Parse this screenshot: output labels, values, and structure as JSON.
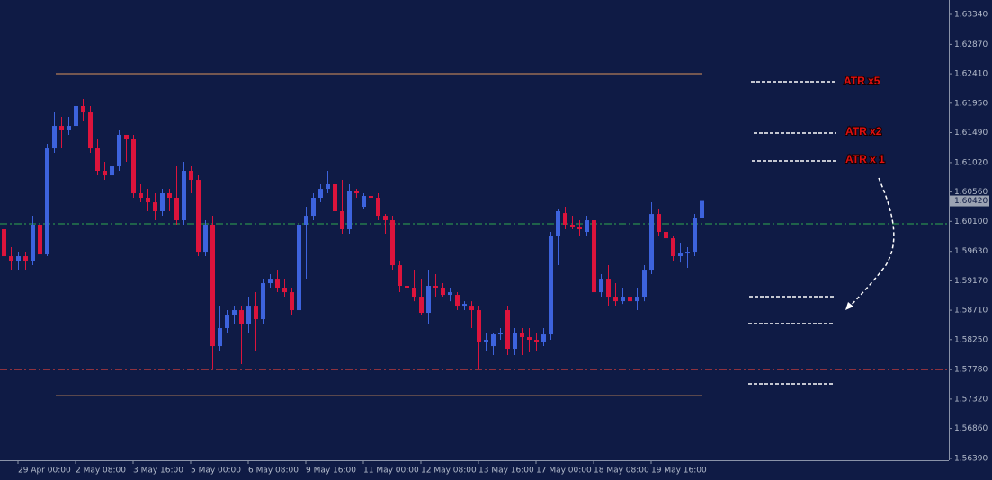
{
  "chart_data": {
    "type": "candlestick",
    "categories": [
      null,
      null,
      "29 Apr 00:00",
      null,
      null,
      null,
      null,
      null,
      null,
      null,
      "2 May 08:00",
      null,
      null,
      null,
      null,
      null,
      null,
      null,
      "3 May 16:00",
      null,
      null,
      null,
      null,
      null,
      null,
      null,
      "5 May 00:00",
      null,
      null,
      null,
      null,
      null,
      null,
      null,
      "6 May 08:00",
      null,
      null,
      null,
      null,
      null,
      null,
      null,
      "9 May 16:00",
      null,
      null,
      null,
      null,
      null,
      null,
      null,
      "11 May 00:00",
      null,
      null,
      null,
      null,
      null,
      null,
      null,
      "12 May 08:00",
      null,
      null,
      null,
      null,
      null,
      null,
      null,
      "13 May 16:00",
      null,
      null,
      null,
      null,
      null,
      null,
      null,
      "17 May 00:00",
      null,
      null,
      null,
      null,
      null,
      null,
      null,
      "18 May 08:00",
      null,
      null,
      null,
      null,
      null,
      null,
      null,
      "19 May 16:00",
      null,
      null,
      null,
      null,
      null,
      null,
      null
    ],
    "open": [
      1.59977,
      1.59555,
      1.59485,
      1.59555,
      1.59485,
      1.60048,
      1.59583,
      1.61243,
      1.61595,
      1.61525,
      1.61595,
      1.61905,
      1.61806,
      1.61243,
      1.60892,
      1.60821,
      1.60962,
      1.61455,
      1.61384,
      1.6054,
      1.6047,
      1.60399,
      1.60259,
      1.6054,
      1.6047,
      1.60118,
      1.60892,
      1.60751,
      1.59625,
      1.60048,
      1.58148,
      1.5843,
      1.58641,
      1.58711,
      1.585,
      1.58781,
      1.5857,
      1.59133,
      1.59203,
      1.59063,
      1.58992,
      1.58711,
      1.60048,
      1.60188,
      1.6047,
      1.6061,
      1.60681,
      1.60259,
      1.59977,
      1.60582,
      1.60329,
      1.60498,
      1.6047,
      1.60188,
      1.60118,
      1.59414,
      1.59091,
      1.59063,
      1.58922,
      1.58669,
      1.59091,
      1.59063,
      1.5895,
      1.5895,
      1.58781,
      1.58781,
      1.58711,
      1.58219,
      1.58148,
      1.58331,
      1.58711,
      1.58106,
      1.58359,
      1.58289,
      1.58247,
      1.58219,
      1.58331,
      1.59879,
      1.6023,
      1.60048,
      1.60019,
      1.59935,
      1.60118,
      1.58992,
      1.59203,
      1.58922,
      1.58851,
      1.58922,
      1.58851,
      1.58922,
      1.59344,
      1.60216,
      1.59935,
      1.59836,
      1.59555,
      1.59597,
      1.59625,
      1.6016
    ],
    "high": [
      1.60188,
      1.59696,
      1.59625,
      1.59625,
      1.60188,
      1.60329,
      1.61314,
      1.61806,
      1.61736,
      1.61736,
      1.62017,
      1.62017,
      1.61905,
      1.61384,
      1.61032,
      1.61103,
      1.61525,
      1.61455,
      1.61455,
      1.60681,
      1.6061,
      1.6054,
      1.6061,
      1.6061,
      1.60962,
      1.61032,
      1.60962,
      1.60821,
      1.60118,
      1.60188,
      1.58781,
      1.58711,
      1.58781,
      1.58781,
      1.58922,
      1.58992,
      1.59203,
      1.59274,
      1.59344,
      1.59203,
      1.59063,
      1.60118,
      1.60329,
      1.6054,
      1.60681,
      1.60892,
      1.60821,
      1.60751,
      1.60681,
      1.6061,
      1.6054,
      1.6054,
      1.6054,
      1.60216,
      1.60188,
      1.59485,
      1.59203,
      1.59344,
      1.59203,
      1.59344,
      1.59274,
      1.59133,
      1.59063,
      1.58992,
      1.58851,
      1.58851,
      1.58781,
      1.58359,
      1.58359,
      1.5843,
      1.58781,
      1.5843,
      1.5843,
      1.5843,
      1.58359,
      1.5843,
      1.59935,
      1.60301,
      1.60329,
      1.60188,
      1.60118,
      1.60188,
      1.60188,
      1.59274,
      1.59414,
      1.59133,
      1.59063,
      1.58992,
      1.59063,
      1.59414,
      1.60399,
      1.60301,
      1.60048,
      1.59879,
      1.59766,
      1.59696,
      1.60216,
      1.60498
    ],
    "low": [
      1.59485,
      1.59344,
      1.59344,
      1.59344,
      1.59414,
      1.59555,
      1.59555,
      1.61173,
      1.61243,
      1.61455,
      1.61243,
      1.61666,
      1.61173,
      1.60821,
      1.60751,
      1.60751,
      1.60892,
      1.61032,
      1.6047,
      1.60399,
      1.60259,
      1.60118,
      1.60188,
      1.60259,
      1.60048,
      1.60048,
      1.6054,
      1.59555,
      1.59555,
      1.57796,
      1.58078,
      1.58359,
      1.585,
      1.57867,
      1.58359,
      1.58078,
      1.585,
      1.59063,
      1.58992,
      1.58922,
      1.58641,
      1.58641,
      1.59203,
      1.60118,
      1.60399,
      1.6054,
      1.60188,
      1.59907,
      1.59907,
      1.6047,
      1.60301,
      1.60399,
      1.60118,
      1.59907,
      1.59344,
      1.58992,
      1.58992,
      1.58851,
      1.58641,
      1.585,
      1.58922,
      1.58922,
      1.58851,
      1.58711,
      1.58711,
      1.5843,
      1.57796,
      1.58078,
      1.58008,
      1.58247,
      1.58008,
      1.58008,
      1.58008,
      1.5805,
      1.58078,
      1.58148,
      1.58247,
      1.59414,
      1.59977,
      1.59977,
      1.59879,
      1.59879,
      1.58922,
      1.58922,
      1.58781,
      1.58781,
      1.58809,
      1.58641,
      1.58711,
      1.58851,
      1.59274,
      1.59879,
      1.59766,
      1.59485,
      1.59456,
      1.59372,
      1.59555,
      1.60118
    ],
    "close": [
      1.59555,
      1.59485,
      1.59555,
      1.59485,
      1.60048,
      1.59583,
      1.61243,
      1.61595,
      1.61525,
      1.61595,
      1.61905,
      1.61806,
      1.61243,
      1.60892,
      1.60821,
      1.60962,
      1.61455,
      1.61384,
      1.6054,
      1.6047,
      1.60399,
      1.60259,
      1.6054,
      1.6047,
      1.60118,
      1.60892,
      1.60751,
      1.59625,
      1.60048,
      1.58148,
      1.5843,
      1.58641,
      1.58711,
      1.585,
      1.58781,
      1.5857,
      1.59133,
      1.59203,
      1.59063,
      1.58992,
      1.58711,
      1.60048,
      1.60188,
      1.6047,
      1.6061,
      1.60681,
      1.60259,
      1.59977,
      1.60582,
      1.6054,
      1.60498,
      1.6047,
      1.60188,
      1.60118,
      1.59414,
      1.59091,
      1.59063,
      1.58922,
      1.58669,
      1.59091,
      1.59063,
      1.5895,
      1.58992,
      1.58781,
      1.58809,
      1.58711,
      1.58219,
      1.58247,
      1.58331,
      1.58359,
      1.58106,
      1.58359,
      1.58289,
      1.58247,
      1.58219,
      1.58331,
      1.59879,
      1.60259,
      1.60048,
      1.6002,
      1.59977,
      1.60118,
      1.58992,
      1.59203,
      1.58922,
      1.58851,
      1.58922,
      1.58851,
      1.58922,
      1.59344,
      1.60216,
      1.59935,
      1.59836,
      1.59555,
      1.59597,
      1.59625,
      1.6016,
      1.6042
    ],
    "up_color": "#3d63dd",
    "down_color": "#dc143c",
    "ylim": [
      1.56362,
      1.63565
    ],
    "yticks": [
      {
        "value": 1.6334,
        "label": "1.63340"
      },
      {
        "value": 1.6287,
        "label": "1.62870"
      },
      {
        "value": 1.6241,
        "label": "1.62410"
      },
      {
        "value": 1.6195,
        "label": "1.61950"
      },
      {
        "value": 1.6149,
        "label": "1.61490"
      },
      {
        "value": 1.6102,
        "label": "1.61020"
      },
      {
        "value": 1.6056,
        "label": "1.60560"
      },
      {
        "value": 1.601,
        "label": "1.60100"
      },
      {
        "value": 1.5963,
        "label": "1.59630"
      },
      {
        "value": 1.5917,
        "label": "1.59170"
      },
      {
        "value": 1.5871,
        "label": "1.58710"
      },
      {
        "value": 1.5825,
        "label": "1.58250"
      },
      {
        "value": 1.5778,
        "label": "1.57780"
      },
      {
        "value": 1.5732,
        "label": "1.57320"
      },
      {
        "value": 1.5686,
        "label": "1.56860"
      },
      {
        "value": 1.5639,
        "label": "1.56390"
      }
    ],
    "current_price": {
      "value": 1.6042,
      "label": "1.60420"
    },
    "levels": [
      {
        "value": 1.62411,
        "color": "#d9935a",
        "style": "solid"
      },
      {
        "value": 1.57374,
        "color": "#d9935a",
        "style": "solid"
      },
      {
        "value": 1.60062,
        "color": "#2fa84f",
        "style": "dashdot"
      },
      {
        "value": 1.57782,
        "color": "#d9403a",
        "style": "dashdot"
      }
    ],
    "annotations": [
      "ATR x5",
      "ATR x2",
      "ATR x 1"
    ],
    "grid": false
  }
}
